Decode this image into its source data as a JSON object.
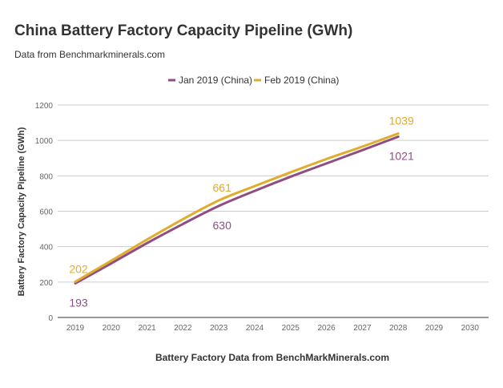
{
  "chart_data": {
    "type": "line",
    "title": "China Battery Factory Capacity Pipeline (GWh)",
    "subtitle": "Data from Benchmarkminerals.com",
    "xlabel": "Battery Factory Data from BenchMarkMinerals.com",
    "ylabel": "Battery Factory Capacity Pipeline (GWh)",
    "categories": [
      "2019",
      "2020",
      "2021",
      "2022",
      "2023",
      "2024",
      "2025",
      "2026",
      "2027",
      "2028",
      "2029",
      "2030"
    ],
    "yticks": [
      "0",
      "200",
      "400",
      "600",
      "800",
      "1000",
      "1200"
    ],
    "ylim": [
      0,
      1200
    ],
    "grid": true,
    "legend_position": "top-center",
    "series": [
      {
        "name": "Jan 2019 (China)",
        "color": "#8e4e82",
        "values": [
          193,
          305,
          420,
          528,
          630,
          715,
          795,
          870,
          945,
          1021,
          null,
          null
        ],
        "labels": [
          {
            "index": 0,
            "text": "193",
            "placement": "below"
          },
          {
            "index": 4,
            "text": "630",
            "placement": "below"
          },
          {
            "index": 9,
            "text": "1021",
            "placement": "below"
          }
        ]
      },
      {
        "name": "Feb 2019 (China)",
        "color": "#e0ac2b",
        "values": [
          202,
          320,
          440,
          555,
          661,
          742,
          820,
          895,
          965,
          1039,
          null,
          null
        ],
        "labels": [
          {
            "index": 0,
            "text": "202",
            "placement": "above"
          },
          {
            "index": 4,
            "text": "661",
            "placement": "above"
          },
          {
            "index": 9,
            "text": "1039",
            "placement": "above"
          }
        ]
      }
    ]
  },
  "colors": {
    "grid": "#cccccc",
    "axis": "#333333",
    "tick_text": "#666666",
    "title_text": "#333333",
    "subtitle_text": "#333333"
  }
}
